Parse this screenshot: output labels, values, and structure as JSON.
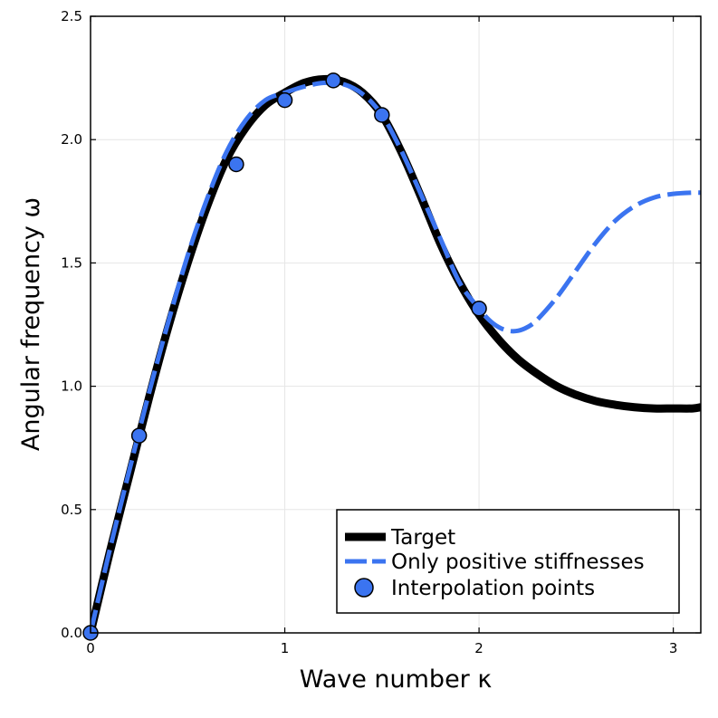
{
  "chart_data": {
    "type": "line",
    "xlabel": "Wave number κ",
    "ylabel": "Angular frequency ω",
    "xlim": [
      0,
      3.14159
    ],
    "ylim": [
      0,
      2.5
    ],
    "x_ticks": [
      0,
      1,
      2,
      3
    ],
    "x_tick_labels": [
      "0",
      "1",
      "2",
      "3"
    ],
    "y_ticks": [
      0,
      0.5,
      1,
      1.5,
      2,
      2.5
    ],
    "y_tick_labels": [
      "0.0",
      "0.5",
      "1.0",
      "1.5",
      "2.0",
      "2.5"
    ],
    "grid": true,
    "legend_position": "bottom-right",
    "series": [
      {
        "name": "Target",
        "style": "solid-thick",
        "color": "#000000",
        "x": [
          0,
          0.1,
          0.2,
          0.3,
          0.4,
          0.5,
          0.6,
          0.7,
          0.8,
          0.9,
          1.0,
          1.1,
          1.2,
          1.3,
          1.4,
          1.5,
          1.6,
          1.7,
          1.8,
          1.9,
          2.0,
          2.1,
          2.2,
          2.3,
          2.4,
          2.5,
          2.6,
          2.7,
          2.8,
          2.9,
          3.0,
          3.1,
          3.14159
        ],
        "y": [
          0.0,
          0.33,
          0.64,
          0.95,
          1.24,
          1.5,
          1.73,
          1.92,
          2.05,
          2.14,
          2.19,
          2.23,
          2.245,
          2.235,
          2.19,
          2.1,
          1.95,
          1.77,
          1.58,
          1.42,
          1.29,
          1.19,
          1.11,
          1.05,
          1.0,
          0.965,
          0.94,
          0.925,
          0.915,
          0.91,
          0.91,
          0.91,
          0.915
        ]
      },
      {
        "name": "Only positive stiffnesses",
        "style": "dashed",
        "color": "#3b74f0",
        "x": [
          0,
          0.1,
          0.2,
          0.3,
          0.4,
          0.5,
          0.6,
          0.7,
          0.8,
          0.9,
          1.0,
          1.1,
          1.2,
          1.3,
          1.4,
          1.5,
          1.6,
          1.7,
          1.8,
          1.9,
          2.0,
          2.05,
          2.1,
          2.15,
          2.2,
          2.25,
          2.3,
          2.4,
          2.5,
          2.6,
          2.7,
          2.8,
          2.9,
          3.0,
          3.1,
          3.14159
        ],
        "y": [
          0.0,
          0.34,
          0.66,
          0.97,
          1.26,
          1.53,
          1.76,
          1.95,
          2.08,
          2.16,
          2.19,
          2.215,
          2.23,
          2.225,
          2.185,
          2.1,
          1.955,
          1.78,
          1.6,
          1.42,
          1.315,
          1.27,
          1.24,
          1.225,
          1.225,
          1.24,
          1.27,
          1.36,
          1.47,
          1.58,
          1.67,
          1.73,
          1.765,
          1.78,
          1.785,
          1.785
        ]
      },
      {
        "name": "Interpolation points",
        "style": "markers",
        "color": "#3b74f0",
        "x": [
          0,
          0.25,
          0.75,
          1.0,
          1.25,
          1.5,
          2.0
        ],
        "y": [
          0.0,
          0.8,
          1.9,
          2.16,
          2.24,
          2.1,
          1.315
        ]
      }
    ]
  }
}
